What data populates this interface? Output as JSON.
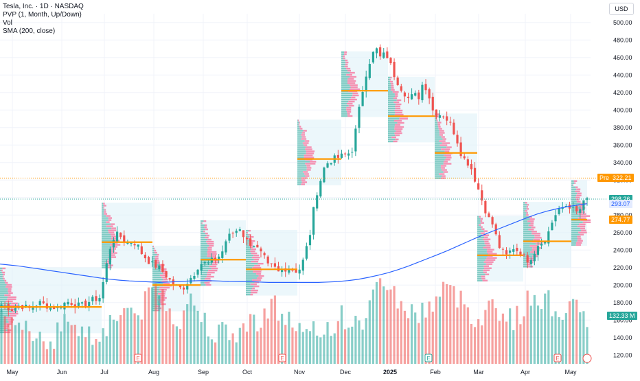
{
  "legend": {
    "symbol": "Tesla, Inc. · 1D · NASDAQ",
    "pvp": "PVP (1, Month, Up/Down)",
    "vol": "Vol",
    "sma": "SMA (200, close)"
  },
  "currency": "USD",
  "tags": {
    "pre_label": "Pre",
    "pre_value": "322.21",
    "last": "298.26",
    "sma": "293.07",
    "poc": "274.77",
    "volume": "132.33 M"
  },
  "colors": {
    "up": "#26a69a",
    "down": "#ef5350",
    "sma": "#2962ff",
    "poc": "#ff9800",
    "pre": "#ff9800",
    "last": "#26a69a",
    "volume_tag": "#26a69a",
    "profile_up": "#80cbc4",
    "profile_down": "#f48fb1",
    "profile_box": "#e0f2f8"
  },
  "chart_data": {
    "type": "candlestick",
    "ylim": [
      110,
      510
    ],
    "y_ticks": [
      "500.00",
      "480.00",
      "460.00",
      "440.00",
      "420.00",
      "400.00",
      "380.00",
      "360.00",
      "340.00",
      "320.00",
      "300.00",
      "280.00",
      "260.00",
      "240.00",
      "220.00",
      "200.00",
      "180.00",
      "160.00",
      "140.00",
      "120.00"
    ],
    "x_labels": [
      "May",
      "Jun",
      "Jul",
      "Aug",
      "Sep",
      "Oct",
      "Nov",
      "Dec",
      "2025",
      "Feb",
      "Mar",
      "Apr",
      "May"
    ],
    "price_path": [
      178,
      176,
      172,
      174,
      177,
      175,
      173,
      176,
      180,
      178,
      176,
      175,
      174,
      178,
      181,
      180,
      177,
      176,
      179,
      182,
      184,
      186,
      210,
      240,
      255,
      258,
      252,
      248,
      250,
      246,
      236,
      230,
      224,
      222,
      218,
      212,
      205,
      200,
      196,
      198,
      206,
      212,
      222,
      226,
      224,
      228,
      231,
      236,
      252,
      258,
      262,
      266,
      252,
      248,
      246,
      238,
      232,
      220,
      222,
      214,
      218,
      220,
      218,
      216,
      220,
      240,
      262,
      300,
      318,
      336,
      342,
      344,
      346,
      348,
      350,
      356,
      390,
      420,
      446,
      462,
      470,
      458,
      466,
      452,
      438,
      428,
      420,
      412,
      418,
      414,
      432,
      422,
      400,
      394,
      396,
      390,
      382,
      370,
      352,
      342,
      338,
      322,
      306,
      290,
      276,
      268,
      246,
      238,
      232,
      244,
      240,
      236,
      228,
      232,
      240,
      252,
      248,
      266,
      278,
      284,
      290,
      292,
      286,
      282,
      292,
      298
    ],
    "sma_path": [
      224,
      222,
      219,
      216,
      213,
      210,
      207,
      205,
      204,
      203,
      204,
      205,
      205,
      204,
      204,
      203,
      203,
      203,
      203,
      204,
      206,
      210,
      215,
      222,
      230,
      238,
      247,
      256,
      264,
      272,
      280,
      286,
      290,
      293
    ],
    "volume_path": [
      160,
      150,
      145,
      155,
      148,
      140,
      138,
      150,
      165,
      155,
      145,
      142,
      150,
      160,
      170,
      175,
      165,
      180,
      200,
      190,
      170,
      160,
      185,
      175,
      160,
      150,
      145,
      140,
      150,
      155,
      160,
      170,
      180,
      165,
      160,
      150,
      140,
      145,
      150,
      155,
      165,
      160,
      150,
      170,
      190,
      210,
      195,
      180,
      170,
      165,
      175,
      180,
      200,
      190,
      185,
      175,
      160,
      170,
      180,
      170,
      160,
      165,
      180,
      190,
      185,
      175,
      170,
      180,
      165,
      160
    ],
    "pocs": [
      {
        "x": [
          0,
          148
        ],
        "y": 175
      },
      {
        "x": [
          148,
          222
        ],
        "y": 249
      },
      {
        "x": [
          222,
          292
        ],
        "y": 200
      },
      {
        "x": [
          292,
          358
        ],
        "y": 229
      },
      {
        "x": [
          358,
          433
        ],
        "y": 218
      },
      {
        "x": [
          433,
          497
        ],
        "y": 344
      },
      {
        "x": [
          497,
          565
        ],
        "y": 422
      },
      {
        "x": [
          565,
          633
        ],
        "y": 393
      },
      {
        "x": [
          633,
          695
        ],
        "y": 351
      },
      {
        "x": [
          695,
          762
        ],
        "y": 234
      },
      {
        "x": [
          762,
          832
        ],
        "y": 250
      },
      {
        "x": [
          832,
          855
        ],
        "y": 274.77
      }
    ],
    "earnings_x": [
      201,
      411,
      624,
      812
    ],
    "pre_value": 322.21,
    "last_value": 298.26,
    "sma_value": 293.07,
    "poc_value": 274.77
  }
}
